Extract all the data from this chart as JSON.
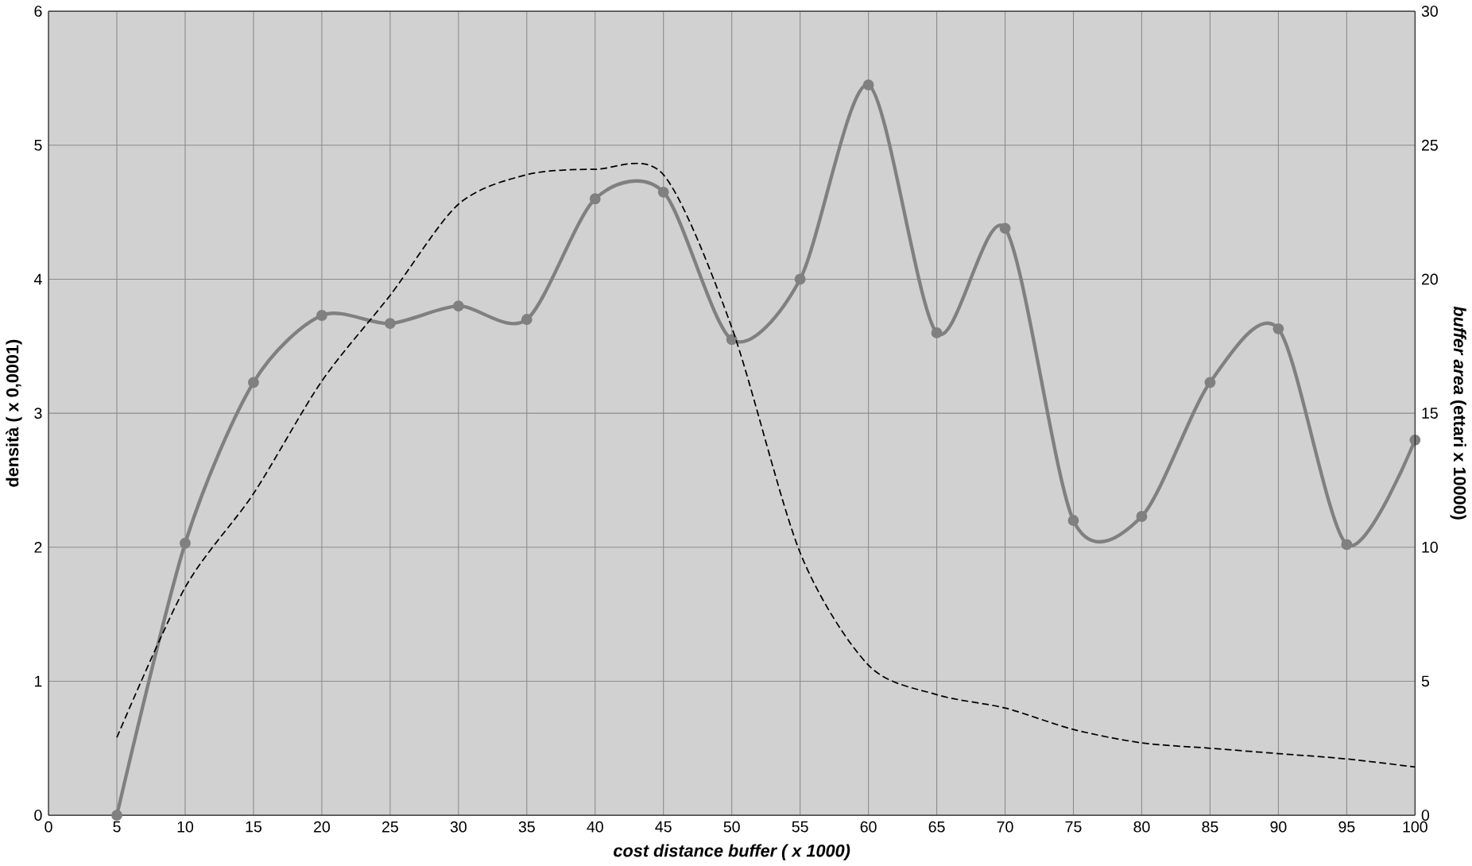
{
  "chart_data": {
    "type": "line",
    "xlabel": "cost distance buffer ( x 1000)",
    "ylabel": "densità ( x 0,0001)",
    "y2label": "*buffer area* (ettari x 10000)",
    "x": [
      5,
      10,
      15,
      20,
      25,
      30,
      35,
      40,
      45,
      50,
      55,
      60,
      65,
      70,
      75,
      80,
      85,
      90,
      95,
      100
    ],
    "xlim": [
      0,
      100
    ],
    "xticks": [
      0,
      5,
      10,
      15,
      20,
      25,
      30,
      35,
      40,
      45,
      50,
      55,
      60,
      65,
      70,
      75,
      80,
      85,
      90,
      95,
      100
    ],
    "ylim": [
      0,
      6
    ],
    "yticks": [
      0,
      1,
      2,
      3,
      4,
      5,
      6
    ],
    "y2lim": [
      0,
      30
    ],
    "y2ticks": [
      0,
      5,
      10,
      15,
      20,
      25,
      30
    ],
    "grid": true,
    "series": [
      {
        "color": "#808080",
        "marker": "circle",
        "line_style": "solid",
        "values": [
          0,
          2.03,
          3.23,
          3.73,
          3.67,
          3.8,
          3.7,
          4.6,
          4.65,
          3.55,
          4.0,
          5.45,
          3.6,
          4.38,
          2.2,
          2.23,
          3.23,
          3.63,
          2.02,
          2.8
        ]
      },
      {
        "color": "#000000",
        "marker": "none",
        "line_style": "dashed",
        "axis": "y2",
        "values": [
          2.9,
          8.5,
          12.0,
          16.2,
          19.4,
          22.8,
          23.9,
          24.1,
          23.9,
          18.2,
          9.8,
          5.6,
          4.5,
          4.0,
          3.2,
          2.7,
          2.5,
          2.3,
          2.1,
          1.8
        ]
      }
    ]
  }
}
